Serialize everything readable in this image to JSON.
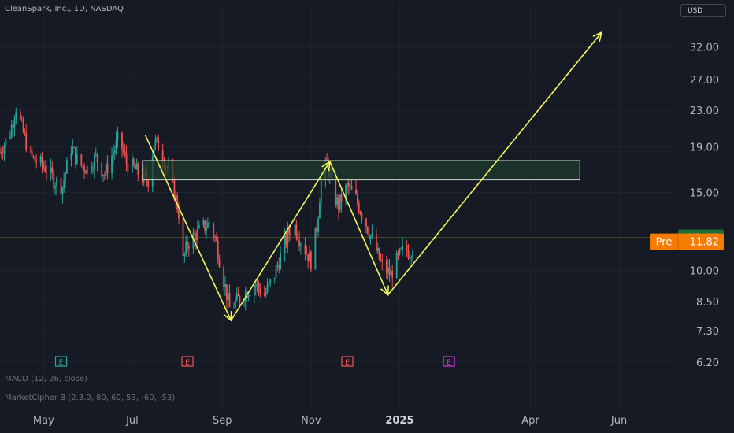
{
  "header": {
    "symbol_title": "CleanSpark, Inc., 1D, NASDAQ",
    "currency": "USD"
  },
  "indicators": {
    "macd": "MACD (12, 26, close)",
    "market_cipher": "MarketCipher B (2.3.0, 80, 60, 53, -60, -53)"
  },
  "colors": {
    "background": "#161a25",
    "up": "#26a69a",
    "down": "#ef5350",
    "annotation": "#f5f55a",
    "zone_fill": "#1e3b2e",
    "last_price_bg": "#1f6b3a",
    "pre_price_bg": "#f57c00",
    "earnings_teal": "#26a69a",
    "earnings_red": "#ef5350",
    "earnings_purple": "#c534d6"
  },
  "chart_data": {
    "type": "candlestick",
    "title": "CleanSpark, Inc., 1D, NASDAQ",
    "y_scale": "log",
    "ylim": [
      6.0,
      37.0
    ],
    "y_ticks": [
      32.0,
      27.0,
      23.0,
      19.0,
      15.0,
      10.0,
      8.5,
      7.3,
      6.2
    ],
    "y_tick_labels": [
      "32.00",
      "27.00",
      "23.00",
      "19.00",
      "15.00",
      "10.00",
      "8.50",
      "7.30",
      "6.20"
    ],
    "x_range": [
      "2024-04-01",
      "2025-07-10"
    ],
    "x_ticks": [
      {
        "date": "2024-05-01",
        "label": "May",
        "bold": false
      },
      {
        "date": "2024-07-01",
        "label": "Jul",
        "bold": false
      },
      {
        "date": "2024-09-01",
        "label": "Sep",
        "bold": false
      },
      {
        "date": "2024-11-01",
        "label": "Nov",
        "bold": false
      },
      {
        "date": "2025-01-01",
        "label": "2025",
        "bold": true
      },
      {
        "date": "2025-04-01",
        "label": "Apr",
        "bold": false
      },
      {
        "date": "2025-06-01",
        "label": "Jun",
        "bold": false
      }
    ],
    "price_path": [
      [
        "2024-04-01",
        18.5
      ],
      [
        "2024-04-08",
        20.5
      ],
      [
        "2024-04-12",
        23.5
      ],
      [
        "2024-04-16",
        21.0
      ],
      [
        "2024-04-22",
        18.0
      ],
      [
        "2024-04-28",
        17.5
      ],
      [
        "2024-05-03",
        17.0
      ],
      [
        "2024-05-08",
        16.0
      ],
      [
        "2024-05-14",
        15.5
      ],
      [
        "2024-05-20",
        19.0
      ],
      [
        "2024-05-25",
        17.5
      ],
      [
        "2024-05-31",
        17.0
      ],
      [
        "2024-06-06",
        18.0
      ],
      [
        "2024-06-12",
        16.5
      ],
      [
        "2024-06-18",
        18.5
      ],
      [
        "2024-06-22",
        20.0
      ],
      [
        "2024-06-27",
        17.5
      ],
      [
        "2024-07-02",
        17.0
      ],
      [
        "2024-07-08",
        16.2
      ],
      [
        "2024-07-12",
        16.0
      ],
      [
        "2024-07-16",
        19.5
      ],
      [
        "2024-07-20",
        19.0
      ],
      [
        "2024-07-25",
        17.0
      ],
      [
        "2024-07-29",
        15.5
      ],
      [
        "2024-08-02",
        13.5
      ],
      [
        "2024-08-05",
        10.5
      ],
      [
        "2024-08-08",
        11.5
      ],
      [
        "2024-08-13",
        12.0
      ],
      [
        "2024-08-19",
        12.5
      ],
      [
        "2024-08-24",
        12.8
      ],
      [
        "2024-08-28",
        11.5
      ],
      [
        "2024-09-02",
        9.5
      ],
      [
        "2024-09-06",
        8.2
      ],
      [
        "2024-09-12",
        8.6
      ],
      [
        "2024-09-18",
        9.0
      ],
      [
        "2024-09-24",
        9.3
      ],
      [
        "2024-09-30",
        8.8
      ],
      [
        "2024-10-06",
        9.6
      ],
      [
        "2024-10-12",
        11.0
      ],
      [
        "2024-10-16",
        12.0
      ],
      [
        "2024-10-20",
        12.8
      ],
      [
        "2024-10-26",
        11.5
      ],
      [
        "2024-11-01",
        10.5
      ],
      [
        "2024-11-05",
        12.5
      ],
      [
        "2024-11-08",
        16.0
      ],
      [
        "2024-11-12",
        17.5
      ],
      [
        "2024-11-16",
        15.0
      ],
      [
        "2024-11-20",
        14.0
      ],
      [
        "2024-11-26",
        15.5
      ],
      [
        "2024-12-02",
        14.5
      ],
      [
        "2024-12-08",
        13.0
      ],
      [
        "2024-12-14",
        11.5
      ],
      [
        "2024-12-20",
        10.2
      ],
      [
        "2024-12-26",
        9.8
      ],
      [
        "2024-12-30",
        10.5
      ],
      [
        "2025-01-04",
        11.2
      ],
      [
        "2025-01-08",
        11.0
      ],
      [
        "2025-01-12",
        11.87
      ]
    ],
    "horizontal_line": 11.87,
    "annotations": {
      "zone": {
        "x_from": "2024-07-08",
        "x_to": "2025-05-05",
        "y_from": 16.0,
        "y_to": 17.7
      },
      "arrows": [
        {
          "from": [
            "2024-07-10",
            20.2
          ],
          "to": [
            "2024-09-07",
            7.7
          ]
        },
        {
          "from": [
            "2024-09-07",
            7.7
          ],
          "to": [
            "2024-11-14",
            17.6
          ]
        },
        {
          "from": [
            "2024-11-14",
            17.6
          ],
          "to": [
            "2024-12-24",
            8.8
          ]
        },
        {
          "from": [
            "2024-12-24",
            8.8
          ],
          "to": [
            "2025-05-20",
            34.5
          ]
        }
      ]
    },
    "earnings_markers": [
      {
        "date": "2024-05-13",
        "label": "E",
        "color": "teal"
      },
      {
        "date": "2024-08-08",
        "label": "E",
        "color": "red"
      },
      {
        "date": "2024-11-26",
        "label": "E",
        "color": "red"
      },
      {
        "date": "2025-02-04",
        "label": "E",
        "color": "purple"
      }
    ],
    "price_labels": [
      {
        "label": "",
        "value": "11.87",
        "y": 11.87,
        "kind": "last"
      },
      {
        "label": "Pre",
        "value": "11.82",
        "y": 11.62,
        "kind": "pre"
      }
    ]
  }
}
